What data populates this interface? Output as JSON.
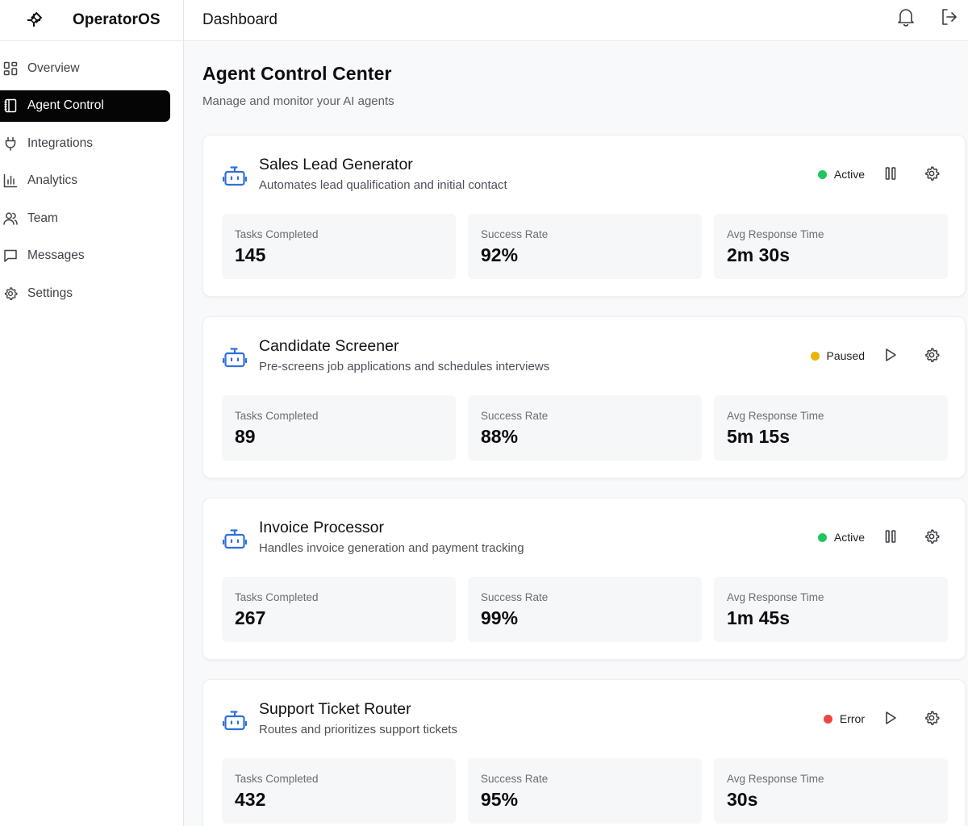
{
  "app": {
    "name": "OperatorOS"
  },
  "header": {
    "title": "Dashboard"
  },
  "sidebar": {
    "items": [
      {
        "label": "Overview",
        "icon": "grid-icon"
      },
      {
        "label": "Agent Control",
        "icon": "notebook-icon",
        "active": true
      },
      {
        "label": "Integrations",
        "icon": "plug-icon"
      },
      {
        "label": "Analytics",
        "icon": "bar-chart-icon"
      },
      {
        "label": "Team",
        "icon": "users-icon"
      },
      {
        "label": "Messages",
        "icon": "message-icon"
      },
      {
        "label": "Settings",
        "icon": "gear-icon"
      }
    ]
  },
  "page": {
    "title": "Agent Control Center",
    "subtitle": "Manage and monitor your AI agents"
  },
  "labels": {
    "tasks": "Tasks Completed",
    "success": "Success Rate",
    "response": "Avg Response Time"
  },
  "colors": {
    "accent": "#2f6fde",
    "active": "#22c55e",
    "paused": "#eab308",
    "error": "#ef4444"
  },
  "agents": [
    {
      "name": "Sales Lead Generator",
      "description": "Automates lead qualification and initial contact",
      "status": "Active",
      "control": "pause-icon",
      "tasks": "145",
      "success": "92%",
      "response": "2m 30s"
    },
    {
      "name": "Candidate Screener",
      "description": "Pre-screens job applications and schedules interviews",
      "status": "Paused",
      "control": "play-icon",
      "tasks": "89",
      "success": "88%",
      "response": "5m 15s"
    },
    {
      "name": "Invoice Processor",
      "description": "Handles invoice generation and payment tracking",
      "status": "Active",
      "control": "pause-icon",
      "tasks": "267",
      "success": "99%",
      "response": "1m 45s"
    },
    {
      "name": "Support Ticket Router",
      "description": "Routes and prioritizes support tickets",
      "status": "Error",
      "control": "play-icon",
      "tasks": "432",
      "success": "95%",
      "response": "30s"
    }
  ]
}
